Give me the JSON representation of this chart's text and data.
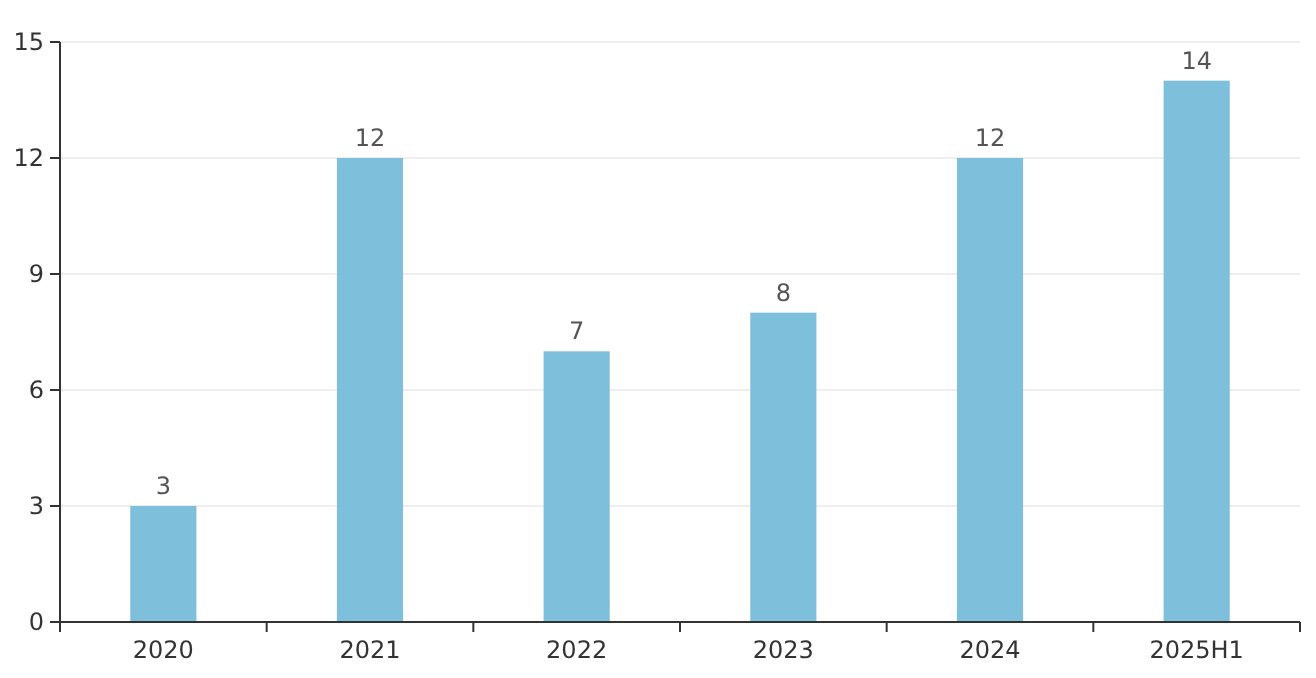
{
  "chart_data": {
    "type": "bar",
    "categories": [
      "2020",
      "2021",
      "2022",
      "2023",
      "2024",
      "2025H1"
    ],
    "values": [
      3,
      12,
      7,
      8,
      12,
      14
    ],
    "color": "#7ebfdb",
    "ylim": [
      0,
      15
    ],
    "yticks": [
      0,
      3,
      6,
      9,
      12,
      15
    ],
    "grid": "y",
    "data_labels": true
  }
}
